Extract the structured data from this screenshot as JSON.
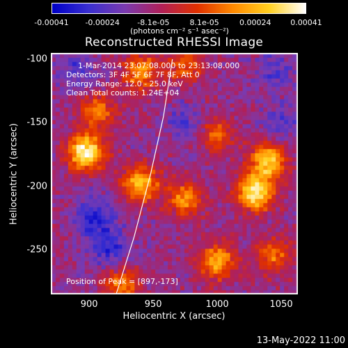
{
  "chart_data": {
    "type": "heatmap",
    "title": "Reconstructed RHESSI Image",
    "xlabel": "Heliocentric X (arcsec)",
    "ylabel": "Heliocentric Y (arcsec)",
    "xlim": [
      870,
      1063
    ],
    "ylim": [
      -285,
      -95
    ],
    "x_ticks": [
      "900",
      "950",
      "1000",
      "1050"
    ],
    "y_ticks": [
      "-100",
      "-150",
      "-200",
      "-250"
    ],
    "colorbar": {
      "ticks": [
        "-0.00041",
        "-0.00024",
        "-8.1e-05",
        "8.1e-05",
        "0.00024",
        "0.00041"
      ],
      "unit_label": "(photons cm⁻² s⁻¹ asec⁻²)",
      "range": [
        -0.00041,
        0.00041
      ],
      "colors": [
        "#0000c8",
        "#3a2fd0",
        "#7a3ab0",
        "#b0205a",
        "#e03000",
        "#ff8a00",
        "#ffd020",
        "#ffffff"
      ]
    },
    "annotations": {
      "time_range": "1-Mar-2014 23:07:08.000 to 23:13:08.000",
      "detectors": "Detectors: 3F 4F 5F 6F 7F 8F, Att 0",
      "energy_range": "Energy Range: 12.0 - 25.0 keV",
      "method": "Clean     Total counts: 1.24E+04",
      "peak": "Position of Peak = [897,-173]"
    },
    "limb_curve": [
      [
        921,
        -285
      ],
      [
        935,
        -240
      ],
      [
        948,
        -190
      ],
      [
        958,
        -145
      ],
      [
        965,
        -100
      ]
    ],
    "hot_spots": [
      {
        "x": 897,
        "y": -173,
        "level": 1.0
      },
      {
        "x": 905,
        "y": -140,
        "level": 0.55
      },
      {
        "x": 940,
        "y": -110,
        "level": 0.6
      },
      {
        "x": 940,
        "y": -198,
        "level": 0.75
      },
      {
        "x": 975,
        "y": -210,
        "level": 0.6
      },
      {
        "x": 1000,
        "y": -260,
        "level": 0.7
      },
      {
        "x": 1000,
        "y": -160,
        "level": 0.45
      },
      {
        "x": 1030,
        "y": -205,
        "level": 0.95
      },
      {
        "x": 1040,
        "y": -180,
        "level": 0.8
      },
      {
        "x": 925,
        "y": -278,
        "level": 0.55
      },
      {
        "x": 1045,
        "y": -255,
        "level": 0.5
      },
      {
        "x": 975,
        "y": -105,
        "level": 0.45
      }
    ],
    "cold_spots": [
      {
        "x": 905,
        "y": -225,
        "level": 0.8
      },
      {
        "x": 915,
        "y": -250,
        "level": 0.7
      },
      {
        "x": 890,
        "y": -110,
        "level": 0.55
      },
      {
        "x": 1045,
        "y": -110,
        "level": 0.5
      },
      {
        "x": 975,
        "y": -150,
        "level": 0.5
      },
      {
        "x": 1050,
        "y": -150,
        "level": 0.45
      }
    ]
  },
  "footer": {
    "date": "13-May-2022 11:00"
  }
}
